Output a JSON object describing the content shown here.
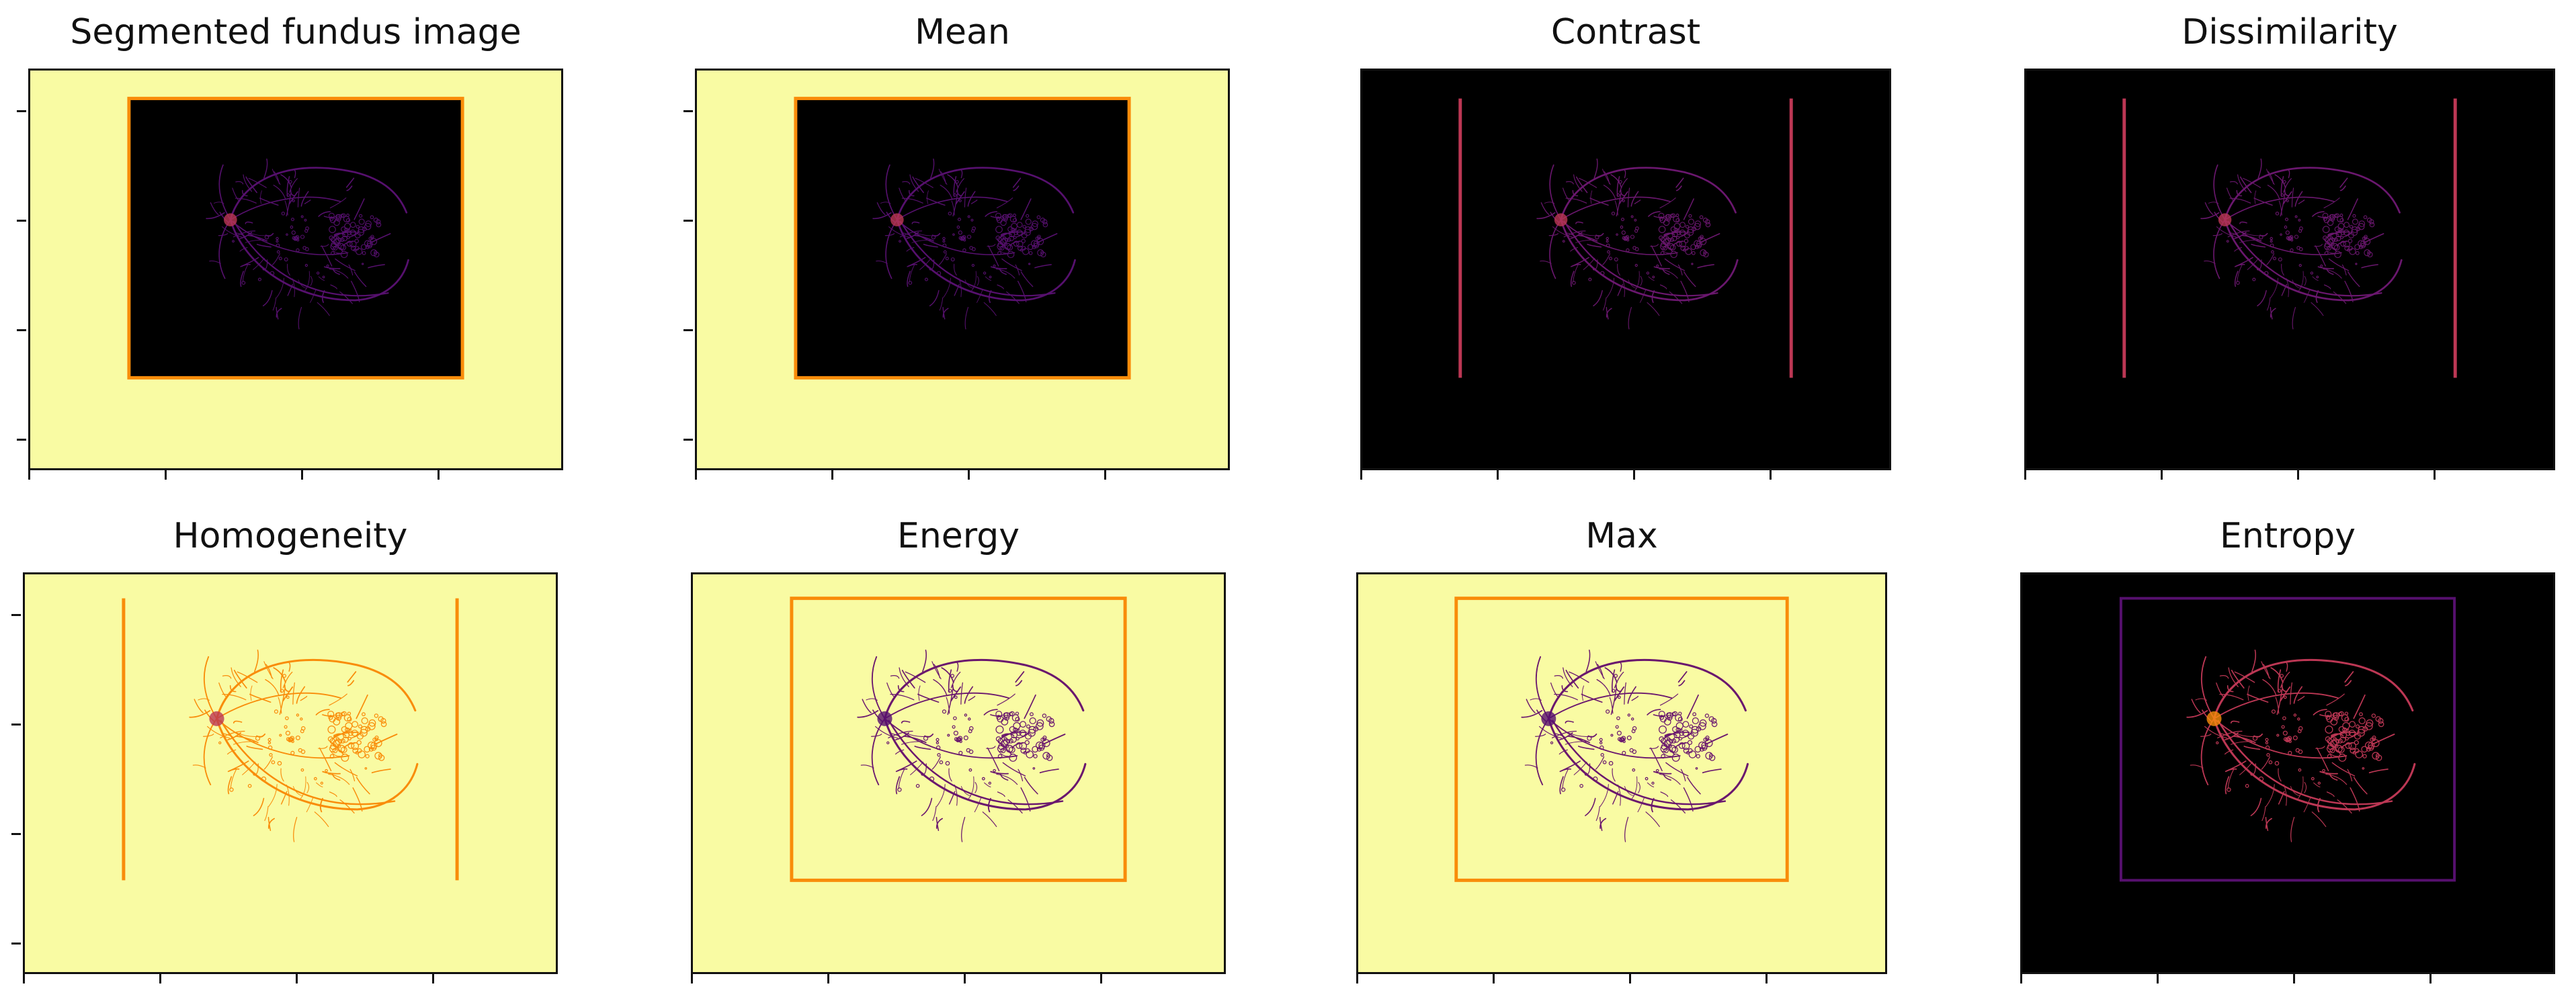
{
  "figure": {
    "panels": [
      {
        "title": "Segmented fundus image",
        "variant": "yellow-frame-black"
      },
      {
        "title": "Mean",
        "variant": "yellow-frame-black"
      },
      {
        "title": "Contrast",
        "variant": "black-dark"
      },
      {
        "title": "Dissimilarity",
        "variant": "black-dark"
      },
      {
        "title": "Homogeneity",
        "variant": "yellow-orange"
      },
      {
        "title": "Energy",
        "variant": "yellow-dark"
      },
      {
        "title": "Max",
        "variant": "yellow-dark"
      },
      {
        "title": "Entropy",
        "variant": "black-bright"
      }
    ],
    "colormap": "inferno",
    "colors": {
      "pale_yellow": "#f9fba3",
      "black": "#000000",
      "orange": "#f98c0a",
      "deep_purple": "#56106e",
      "magenta": "#bc3754",
      "dark_red": "#6a176e"
    }
  }
}
